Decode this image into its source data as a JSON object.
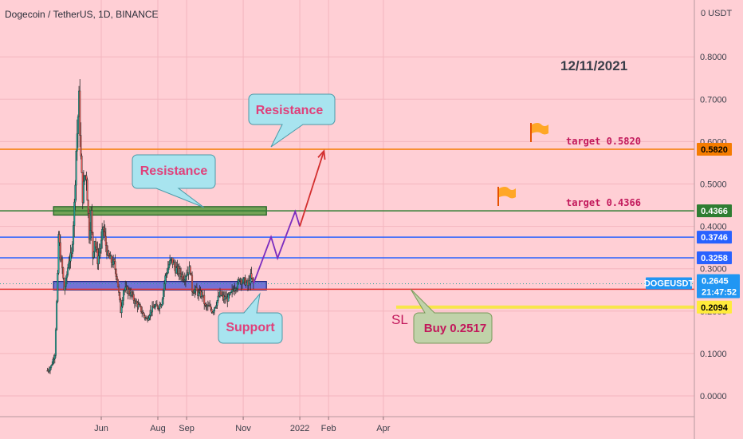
{
  "header": {
    "title": "Dogecoin / TetherUS, 1D, BINANCE"
  },
  "chart_data": {
    "type": "candlestick",
    "symbol": "DOGEUSDT",
    "ylim": [
      -0.05,
      0.85
    ],
    "y_ticks": [
      {
        "value": 0.0,
        "label": "0.0000"
      },
      {
        "value": 0.1,
        "label": "0.1000"
      },
      {
        "value": 0.2,
        "label": "0.2000"
      },
      {
        "value": 0.3,
        "label": "0.3000"
      },
      {
        "value": 0.4,
        "label": "0.4000"
      },
      {
        "value": 0.5,
        "label": "0.5000"
      },
      {
        "value": 0.6,
        "label": "0.6000"
      },
      {
        "value": 0.7,
        "label": "0.7000"
      },
      {
        "value": 0.8,
        "label": "0.8000"
      }
    ],
    "y_axis_top_label": "0 USDT",
    "x_ticks": [
      {
        "date": "2021-06-01",
        "label": "Jun"
      },
      {
        "date": "2021-08-01",
        "label": "Aug"
      },
      {
        "date": "2021-09-01",
        "label": "Sep"
      },
      {
        "date": "2021-11-01",
        "label": "Nov"
      },
      {
        "date": "2022-01-01",
        "label": "2022"
      },
      {
        "date": "2022-02-01",
        "label": "Feb"
      },
      {
        "date": "2022-04-01",
        "label": "Apr"
      }
    ],
    "date_stamp": "12/11/2021",
    "price_series": [
      [
        "2021-04-04",
        0.06
      ],
      [
        "2021-04-08",
        0.07
      ],
      [
        "2021-04-12",
        0.1
      ],
      [
        "2021-04-15",
        0.28
      ],
      [
        "2021-04-16",
        0.38
      ],
      [
        "2021-04-18",
        0.33
      ],
      [
        "2021-04-20",
        0.3
      ],
      [
        "2021-04-22",
        0.25
      ],
      [
        "2021-04-24",
        0.27
      ],
      [
        "2021-04-27",
        0.32
      ],
      [
        "2021-04-30",
        0.33
      ],
      [
        "2021-05-03",
        0.45
      ],
      [
        "2021-05-05",
        0.58
      ],
      [
        "2021-05-07",
        0.66
      ],
      [
        "2021-05-08",
        0.7
      ],
      [
        "2021-05-10",
        0.56
      ],
      [
        "2021-05-12",
        0.47
      ],
      [
        "2021-05-14",
        0.52
      ],
      [
        "2021-05-16",
        0.52
      ],
      [
        "2021-05-19",
        0.38
      ],
      [
        "2021-05-21",
        0.43
      ],
      [
        "2021-05-23",
        0.33
      ],
      [
        "2021-05-25",
        0.37
      ],
      [
        "2021-05-28",
        0.32
      ],
      [
        "2021-06-01",
        0.36
      ],
      [
        "2021-06-03",
        0.4
      ],
      [
        "2021-06-05",
        0.37
      ],
      [
        "2021-06-08",
        0.33
      ],
      [
        "2021-06-11",
        0.32
      ],
      [
        "2021-06-15",
        0.31
      ],
      [
        "2021-06-18",
        0.28
      ],
      [
        "2021-06-20",
        0.24
      ],
      [
        "2021-06-22",
        0.2
      ],
      [
        "2021-06-25",
        0.25
      ],
      [
        "2021-06-29",
        0.25
      ],
      [
        "2021-07-03",
        0.24
      ],
      [
        "2021-07-08",
        0.22
      ],
      [
        "2021-07-12",
        0.21
      ],
      [
        "2021-07-17",
        0.19
      ],
      [
        "2021-07-20",
        0.18
      ],
      [
        "2021-07-24",
        0.2
      ],
      [
        "2021-07-28",
        0.21
      ],
      [
        "2021-08-01",
        0.21
      ],
      [
        "2021-08-05",
        0.22
      ],
      [
        "2021-08-09",
        0.28
      ],
      [
        "2021-08-13",
        0.31
      ],
      [
        "2021-08-16",
        0.32
      ],
      [
        "2021-08-20",
        0.3
      ],
      [
        "2021-08-25",
        0.29
      ],
      [
        "2021-08-29",
        0.28
      ],
      [
        "2021-09-01",
        0.29
      ],
      [
        "2021-09-05",
        0.3
      ],
      [
        "2021-09-07",
        0.25
      ],
      [
        "2021-09-10",
        0.25
      ],
      [
        "2021-09-14",
        0.24
      ],
      [
        "2021-09-18",
        0.24
      ],
      [
        "2021-09-21",
        0.21
      ],
      [
        "2021-09-25",
        0.21
      ],
      [
        "2021-09-29",
        0.2
      ],
      [
        "2021-10-03",
        0.22
      ],
      [
        "2021-10-07",
        0.24
      ],
      [
        "2021-10-11",
        0.23
      ],
      [
        "2021-10-15",
        0.23
      ],
      [
        "2021-10-19",
        0.24
      ],
      [
        "2021-10-23",
        0.26
      ],
      [
        "2021-10-26",
        0.26
      ],
      [
        "2021-10-28",
        0.28
      ],
      [
        "2021-10-31",
        0.27
      ],
      [
        "2021-11-03",
        0.27
      ],
      [
        "2021-11-06",
        0.26
      ],
      [
        "2021-11-09",
        0.28
      ],
      [
        "2021-11-12",
        0.265
      ]
    ],
    "projection": [
      [
        "2021-11-12",
        0.2645
      ],
      [
        "2021-12-01",
        0.375
      ],
      [
        "2021-12-08",
        0.325
      ],
      [
        "2021-12-27",
        0.435
      ],
      [
        "2022-01-01",
        0.4
      ],
      [
        "2022-01-27",
        0.578
      ]
    ],
    "horizontal_lines": [
      {
        "name": "target-line-0582",
        "value": 0.582,
        "color": "#f57c00",
        "label": "0.5820",
        "tag_bg": "#f57c00",
        "tag_fg": "#000000"
      },
      {
        "name": "target-line-04366",
        "value": 0.4366,
        "color": "#2e7d32",
        "label": "0.4366",
        "tag_bg": "#2e7d32",
        "tag_fg": "#ffffff"
      },
      {
        "name": "line-03746",
        "value": 0.3746,
        "color": "#2962ff",
        "label": "0.3746",
        "tag_bg": "#2962ff",
        "tag_fg": "#ffffff"
      },
      {
        "name": "line-03258",
        "value": 0.3258,
        "color": "#2962ff",
        "label": "0.3258",
        "tag_bg": "#2962ff",
        "tag_fg": "#ffffff"
      },
      {
        "name": "sl-line-02517",
        "value": 0.2517,
        "color": "#e53935",
        "label": "0.2517",
        "tag_bg": "#e53935",
        "tag_fg": "#ffffff"
      },
      {
        "name": "line-02094",
        "value": 0.2094,
        "color": "#f7e64a",
        "label": "0.2094",
        "tag_bg": "#ffeb3b",
        "tag_fg": "#000000"
      }
    ],
    "current_price": {
      "symbol": "DOGEUSDT",
      "price": "0.2645",
      "countdown": "21:47:52",
      "value": 0.2645
    },
    "zones": [
      {
        "name": "resistance-zone",
        "start": "2021-04-08",
        "end": "2021-11-14",
        "top": 0.4466,
        "bottom": 0.4266,
        "fill": "#5a9a3f"
      },
      {
        "name": "support-zone",
        "start": "2021-04-08",
        "end": "2021-11-14",
        "top": 0.27,
        "bottom": 0.25,
        "fill": "#5b63d6"
      }
    ],
    "callouts": [
      {
        "name": "resistance-callout-upper",
        "text": "Resistance"
      },
      {
        "name": "resistance-callout-lower",
        "text": "Resistance"
      },
      {
        "name": "support-callout",
        "text": "Support"
      },
      {
        "name": "buy-callout",
        "text": "Buy 0.2517"
      }
    ],
    "labels": {
      "target_upper": "target 0.5820",
      "target_lower": "target 0.4366",
      "sl": "SL"
    },
    "colors": {
      "background": "#ffcfd5",
      "candle_up": "#26a69a",
      "candle_down": "#ef5350",
      "projection": "#7b2cbf",
      "arrow": "#d32f2f",
      "callout_fill": "#a8e4ef",
      "buy_fill": "#c0d2a9",
      "flag": "#ffa726"
    }
  }
}
